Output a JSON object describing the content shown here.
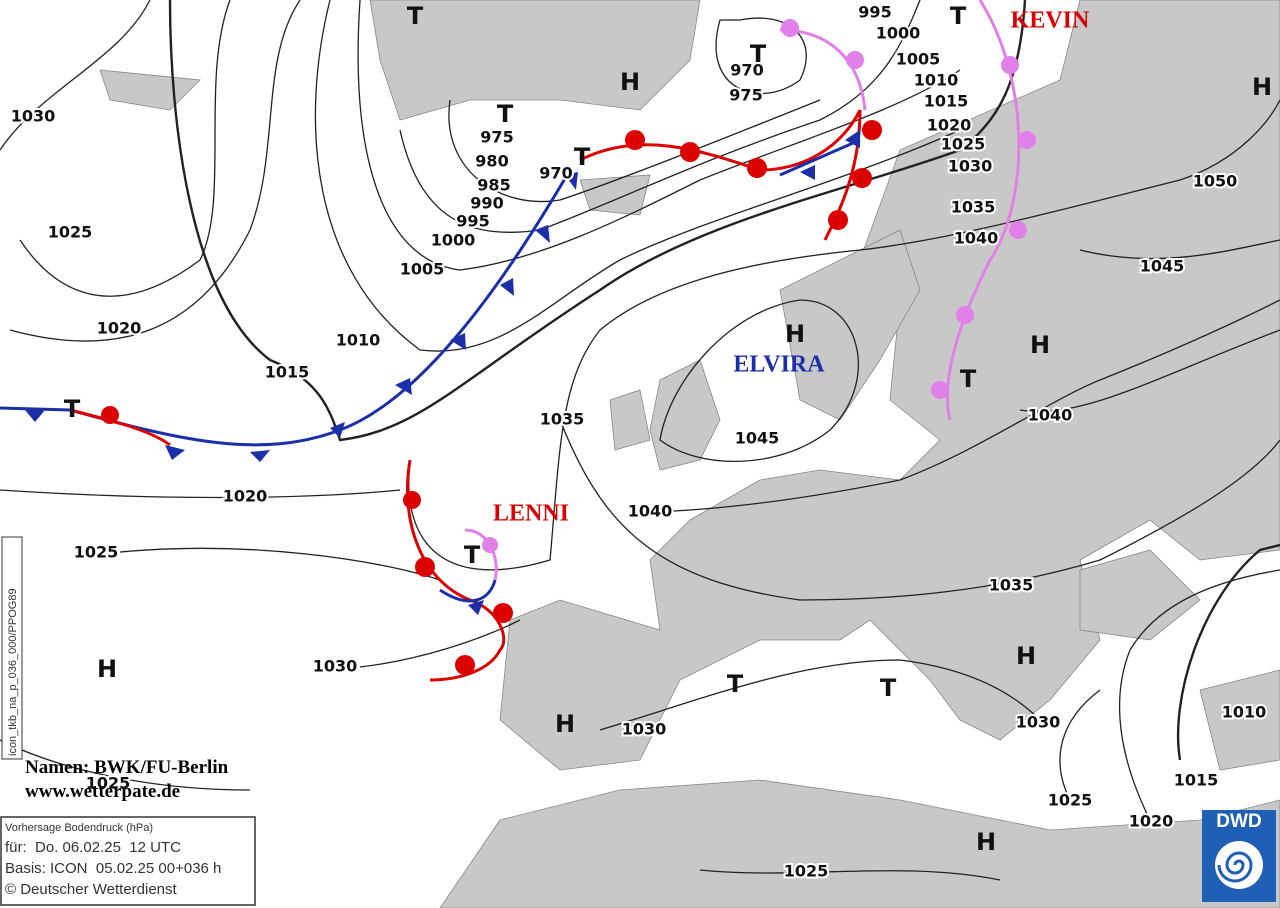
{
  "isobar_labels": [
    1030,
    1025,
    1020,
    1015,
    1010,
    1005,
    1000,
    995,
    990,
    985,
    980,
    975,
    970,
    970,
    975,
    995,
    1000,
    1005,
    1010,
    1015,
    1020,
    1025,
    1030,
    1035,
    1040,
    1045,
    1050,
    1040,
    1045,
    1035,
    1040,
    1020,
    1025,
    1030,
    1035,
    1030,
    1030,
    1010,
    1015,
    1020,
    1025,
    1025,
    1025
  ],
  "pressure_centers": [
    "T",
    "H",
    "T",
    "T",
    "T",
    "T",
    "H",
    "H",
    "H",
    "T",
    "T",
    "T",
    "H",
    "H",
    "T",
    "T",
    "H",
    "H"
  ],
  "names": [
    "KEVIN",
    "ELVIRA",
    "LENNI"
  ],
  "credits": [
    "Namen: BWK/FU-Berlin",
    "www.wetterpate.de"
  ],
  "info_box": [
    "Vorhersage Bodendruck (hPa)",
    "für:  Do. 06.02.25  12 UTC",
    "Basis: ICON  05.02.25 00+036 h",
    "© Deutscher Wetterdienst"
  ],
  "product_code": "icon_tkb_na_p_036_000/PPOG89",
  "logo": "DWD"
}
